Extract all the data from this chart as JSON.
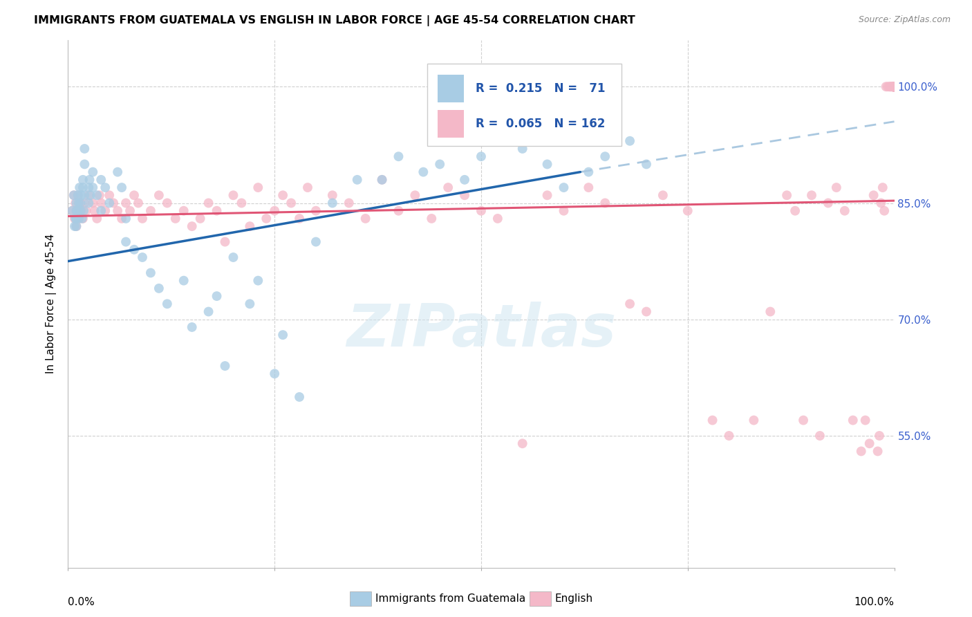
{
  "title": "IMMIGRANTS FROM GUATEMALA VS ENGLISH IN LABOR FORCE | AGE 45-54 CORRELATION CHART",
  "source": "Source: ZipAtlas.com",
  "ylabel": "In Labor Force | Age 45-54",
  "blue_R": 0.215,
  "blue_N": 71,
  "pink_R": 0.065,
  "pink_N": 162,
  "blue_color": "#a8cce4",
  "pink_color": "#f4b8c8",
  "blue_line_color": "#2166ac",
  "pink_line_color": "#e05575",
  "dash_line_color": "#aac8e0",
  "background_color": "#ffffff",
  "grid_color": "#d0d0d0",
  "watermark": "ZIPatlas",
  "xlim": [
    0.0,
    1.0
  ],
  "ylim": [
    0.38,
    1.06
  ],
  "ytick_vals": [
    0.55,
    0.7,
    0.85,
    1.0
  ],
  "ytick_labels": [
    "55.0%",
    "70.0%",
    "85.0%",
    "100.0%"
  ],
  "blue_line_x0": 0.0,
  "blue_line_x1": 0.62,
  "blue_line_y0": 0.775,
  "blue_line_y1": 0.89,
  "dash_line_x0": 0.62,
  "dash_line_x1": 1.0,
  "dash_line_y0": 0.89,
  "dash_line_y1": 0.955,
  "pink_line_x0": 0.0,
  "pink_line_x1": 1.0,
  "pink_line_y0": 0.833,
  "pink_line_y1": 0.853,
  "blue_scatter_x": [
    0.005,
    0.007,
    0.008,
    0.009,
    0.01,
    0.01,
    0.01,
    0.01,
    0.012,
    0.012,
    0.013,
    0.013,
    0.014,
    0.015,
    0.015,
    0.016,
    0.017,
    0.018,
    0.018,
    0.019,
    0.02,
    0.02,
    0.02,
    0.025,
    0.025,
    0.026,
    0.027,
    0.03,
    0.03,
    0.035,
    0.04,
    0.04,
    0.045,
    0.05,
    0.06,
    0.065,
    0.07,
    0.07,
    0.08,
    0.09,
    0.1,
    0.11,
    0.12,
    0.14,
    0.15,
    0.17,
    0.18,
    0.19,
    0.2,
    0.22,
    0.23,
    0.25,
    0.26,
    0.28,
    0.3,
    0.32,
    0.35,
    0.38,
    0.4,
    0.43,
    0.45,
    0.48,
    0.5,
    0.52,
    0.55,
    0.58,
    0.6,
    0.63,
    0.65,
    0.68,
    0.7
  ],
  "blue_scatter_y": [
    0.84,
    0.86,
    0.82,
    0.83,
    0.85,
    0.83,
    0.84,
    0.82,
    0.86,
    0.84,
    0.85,
    0.83,
    0.87,
    0.85,
    0.84,
    0.86,
    0.83,
    0.87,
    0.88,
    0.84,
    0.86,
    0.9,
    0.92,
    0.87,
    0.85,
    0.88,
    0.86,
    0.89,
    0.87,
    0.86,
    0.88,
    0.84,
    0.87,
    0.85,
    0.89,
    0.87,
    0.83,
    0.8,
    0.79,
    0.78,
    0.76,
    0.74,
    0.72,
    0.75,
    0.69,
    0.71,
    0.73,
    0.64,
    0.78,
    0.72,
    0.75,
    0.63,
    0.68,
    0.6,
    0.8,
    0.85,
    0.88,
    0.88,
    0.91,
    0.89,
    0.9,
    0.88,
    0.91,
    0.93,
    0.92,
    0.9,
    0.87,
    0.89,
    0.91,
    0.93,
    0.9
  ],
  "pink_scatter_x": [
    0.005,
    0.007,
    0.008,
    0.009,
    0.01,
    0.01,
    0.012,
    0.013,
    0.015,
    0.016,
    0.018,
    0.02,
    0.022,
    0.025,
    0.03,
    0.032,
    0.035,
    0.038,
    0.04,
    0.045,
    0.05,
    0.055,
    0.06,
    0.065,
    0.07,
    0.075,
    0.08,
    0.085,
    0.09,
    0.1,
    0.11,
    0.12,
    0.13,
    0.14,
    0.15,
    0.16,
    0.17,
    0.18,
    0.19,
    0.2,
    0.21,
    0.22,
    0.23,
    0.24,
    0.25,
    0.26,
    0.27,
    0.28,
    0.29,
    0.3,
    0.32,
    0.34,
    0.36,
    0.38,
    0.4,
    0.42,
    0.44,
    0.46,
    0.48,
    0.5,
    0.52,
    0.55,
    0.58,
    0.6,
    0.63,
    0.65,
    0.68,
    0.7,
    0.72,
    0.75,
    0.78,
    0.8,
    0.83,
    0.85,
    0.87,
    0.88,
    0.89,
    0.9,
    0.91,
    0.92,
    0.93,
    0.94,
    0.95,
    0.96,
    0.965,
    0.97,
    0.975,
    0.98,
    0.982,
    0.984,
    0.986,
    0.988,
    0.99,
    0.992,
    0.994,
    0.995,
    0.996,
    0.997,
    0.998,
    0.999,
    1.0,
    1.0,
    1.0,
    1.0,
    1.0,
    1.0,
    1.0,
    1.0,
    1.0,
    1.0,
    1.0,
    1.0,
    1.0,
    1.0,
    1.0,
    1.0,
    1.0,
    1.0,
    1.0,
    1.0,
    1.0,
    1.0,
    1.0,
    1.0,
    1.0,
    1.0,
    1.0,
    1.0,
    1.0,
    1.0,
    1.0,
    1.0,
    1.0,
    1.0,
    1.0,
    1.0,
    1.0,
    1.0,
    1.0,
    1.0,
    1.0,
    1.0,
    1.0,
    1.0,
    1.0,
    1.0,
    1.0,
    1.0,
    1.0,
    1.0,
    1.0,
    1.0,
    1.0,
    1.0,
    1.0,
    1.0,
    1.0,
    1.0,
    1.0,
    1.0,
    1.0,
    1.0,
    1.0
  ],
  "pink_scatter_y": [
    0.84,
    0.86,
    0.83,
    0.85,
    0.82,
    0.84,
    0.86,
    0.83,
    0.85,
    0.84,
    0.83,
    0.85,
    0.84,
    0.86,
    0.85,
    0.84,
    0.83,
    0.86,
    0.85,
    0.84,
    0.86,
    0.85,
    0.84,
    0.83,
    0.85,
    0.84,
    0.86,
    0.85,
    0.83,
    0.84,
    0.86,
    0.85,
    0.83,
    0.84,
    0.82,
    0.83,
    0.85,
    0.84,
    0.8,
    0.86,
    0.85,
    0.82,
    0.87,
    0.83,
    0.84,
    0.86,
    0.85,
    0.83,
    0.87,
    0.84,
    0.86,
    0.85,
    0.83,
    0.88,
    0.84,
    0.86,
    0.83,
    0.87,
    0.86,
    0.84,
    0.83,
    0.54,
    0.86,
    0.84,
    0.87,
    0.85,
    0.72,
    0.71,
    0.86,
    0.84,
    0.57,
    0.55,
    0.57,
    0.71,
    0.86,
    0.84,
    0.57,
    0.86,
    0.55,
    0.85,
    0.87,
    0.84,
    0.57,
    0.53,
    0.57,
    0.54,
    0.86,
    0.53,
    0.55,
    0.85,
    0.87,
    0.84,
    1.0,
    1.0,
    1.0,
    1.0,
    1.0,
    1.0,
    1.0,
    1.0,
    1.0,
    1.0,
    1.0,
    1.0,
    1.0,
    1.0,
    1.0,
    1.0,
    1.0,
    1.0,
    1.0,
    1.0,
    1.0,
    1.0,
    1.0,
    1.0,
    1.0,
    1.0,
    1.0,
    1.0,
    1.0,
    1.0,
    1.0,
    1.0,
    1.0,
    1.0,
    1.0,
    1.0,
    1.0,
    1.0,
    1.0,
    1.0,
    1.0,
    1.0,
    1.0,
    1.0,
    1.0,
    1.0,
    1.0,
    1.0,
    1.0,
    1.0,
    1.0,
    1.0,
    1.0,
    1.0,
    1.0,
    1.0,
    1.0,
    1.0,
    1.0,
    1.0,
    1.0,
    1.0,
    1.0,
    1.0,
    1.0,
    1.0,
    1.0,
    1.0,
    1.0,
    1.0,
    1.0
  ]
}
